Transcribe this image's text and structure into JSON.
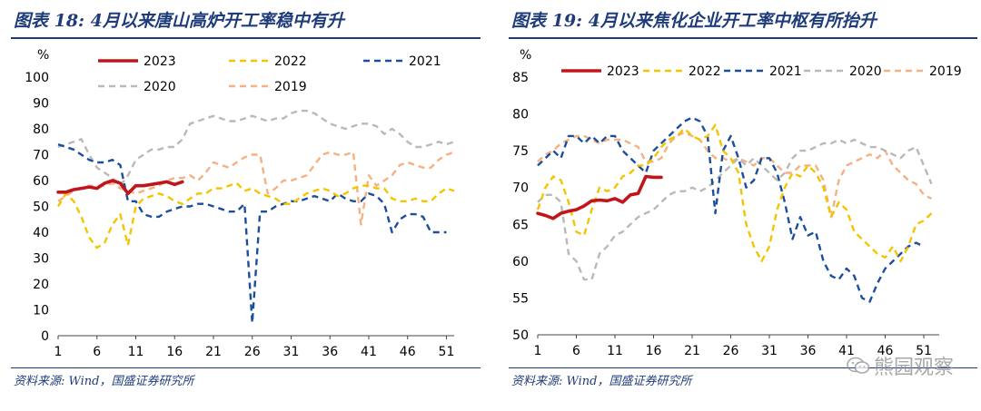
{
  "panels": [
    {
      "title": "图表 18:  4月以来唐山高炉开工率稳中有升",
      "source": "资料来源:  Wind，国盛证券研究所",
      "unit_label": "%"
    },
    {
      "title": "图表 19:  4月以来焦化企业开工率中枢有所抬升",
      "source": "资料来源:  Wind，国盛证券研究所",
      "unit_label": "%"
    }
  ],
  "watermark": {
    "text": "熊园观察"
  },
  "colors": {
    "y2023": "#c0161b",
    "y2022": "#f5c400",
    "y2021": "#1b4f9c",
    "y2020": "#b9b9b9",
    "y2019": "#f4b183",
    "title": "#1f3c7a"
  },
  "chart_data": [
    {
      "type": "line",
      "title": "4月以来唐山高炉开工率稳中有升",
      "ylabel": "%",
      "ylim": [
        0,
        100
      ],
      "yticks": [
        0,
        10,
        20,
        30,
        40,
        50,
        60,
        70,
        80,
        90,
        100
      ],
      "xlim": [
        1,
        52
      ],
      "xticks": [
        1,
        6,
        11,
        16,
        21,
        26,
        31,
        36,
        41,
        46,
        51
      ],
      "legend": [
        "2023",
        "2022",
        "2021",
        "2020",
        "2019"
      ],
      "series": [
        {
          "name": "2023",
          "x": [
            1,
            2,
            3,
            4,
            5,
            6,
            7,
            8,
            9,
            10,
            11,
            12,
            13,
            14,
            15,
            16,
            17
          ],
          "values": [
            55.5,
            55.5,
            56.5,
            57,
            57.5,
            57,
            59,
            60,
            59,
            55,
            58,
            58,
            58.5,
            59,
            59.5,
            58.5,
            59.5
          ]
        },
        {
          "name": "2022",
          "x": [
            1,
            2,
            3,
            4,
            5,
            6,
            7,
            8,
            9,
            10,
            11,
            12,
            13,
            14,
            15,
            16,
            17,
            18,
            19,
            20,
            21,
            22,
            23,
            24,
            25,
            26,
            27,
            28,
            29,
            30,
            31,
            32,
            33,
            34,
            35,
            36,
            37,
            38,
            39,
            40,
            41,
            42,
            43,
            44,
            45,
            46,
            47,
            48,
            49,
            50,
            51,
            52
          ],
          "values": [
            50,
            55,
            52,
            46,
            38,
            34,
            36,
            43,
            47,
            35,
            50,
            53,
            54,
            55,
            54,
            52,
            51,
            53,
            55,
            55,
            57,
            57,
            58,
            59,
            56,
            57,
            55,
            54,
            53,
            51,
            51,
            53,
            55,
            56,
            57,
            56,
            54,
            55,
            57,
            58,
            58,
            57,
            57,
            53,
            52,
            52,
            53,
            52,
            52,
            55,
            57,
            56
          ]
        },
        {
          "name": "2021",
          "x": [
            1,
            2,
            3,
            4,
            5,
            6,
            7,
            8,
            9,
            10,
            11,
            12,
            13,
            14,
            15,
            16,
            17,
            18,
            19,
            20,
            21,
            22,
            23,
            24,
            25,
            26,
            27,
            28,
            29,
            30,
            31,
            32,
            33,
            34,
            35,
            36,
            37,
            38,
            39,
            40,
            41,
            42,
            43,
            44,
            45,
            46,
            47,
            48,
            49,
            50,
            51
          ],
          "values": [
            74,
            73,
            72,
            70,
            68,
            67,
            67,
            68,
            66,
            52,
            52,
            47,
            46,
            46,
            48,
            49,
            50,
            50,
            51,
            51,
            50,
            49,
            48,
            48,
            51,
            5,
            48,
            48,
            50,
            51,
            52,
            52,
            53,
            54,
            53,
            52,
            55,
            53,
            52,
            52,
            55,
            54,
            51,
            40,
            45,
            47,
            47,
            46,
            40,
            40,
            40
          ]
        },
        {
          "name": "2020",
          "x": [
            1,
            2,
            3,
            4,
            5,
            6,
            7,
            8,
            9,
            10,
            11,
            12,
            13,
            14,
            15,
            16,
            17,
            18,
            19,
            20,
            21,
            22,
            23,
            24,
            25,
            26,
            27,
            28,
            29,
            30,
            31,
            32,
            33,
            34,
            35,
            36,
            37,
            38,
            39,
            40,
            41,
            42,
            43,
            44,
            45,
            46,
            47,
            48,
            49,
            50,
            51,
            52
          ],
          "values": [
            73,
            74,
            75,
            76,
            70,
            65,
            63,
            61,
            58,
            62,
            68,
            70,
            72,
            72,
            73,
            73,
            76,
            82,
            83,
            84,
            85,
            84,
            83,
            83,
            84,
            85,
            84,
            83,
            84,
            84,
            86,
            87,
            87,
            86,
            84,
            82,
            81,
            80,
            81,
            82,
            82,
            81,
            78,
            80,
            78,
            75,
            73,
            73,
            74,
            75,
            74,
            75
          ]
        },
        {
          "name": "2019",
          "x": [
            1,
            2,
            3,
            4,
            5,
            6,
            7,
            8,
            9,
            10,
            11,
            12,
            13,
            14,
            15,
            16,
            17,
            18,
            19,
            20,
            21,
            22,
            23,
            24,
            25,
            26,
            27,
            28,
            29,
            30,
            31,
            32,
            33,
            34,
            35,
            36,
            37,
            38,
            39,
            40,
            41,
            42,
            43,
            44,
            45,
            46,
            47,
            48,
            49,
            50,
            51,
            52
          ],
          "values": [
            52,
            54,
            56,
            57,
            58,
            58,
            58,
            59,
            57,
            56,
            55,
            56,
            57,
            58,
            60,
            61,
            61,
            62,
            60,
            63,
            67,
            66,
            65,
            67,
            69,
            70,
            70,
            55,
            57,
            60,
            60,
            61,
            62,
            66,
            70,
            71,
            70,
            70,
            71,
            43,
            62,
            58,
            60,
            62,
            66,
            67,
            66,
            65,
            65,
            68,
            70,
            71
          ]
        }
      ]
    },
    {
      "type": "line",
      "title": "4月以来焦化企业开工率中枢有所抬升",
      "ylabel": "%",
      "ylim": [
        50,
        85
      ],
      "yticks": [
        50,
        55,
        60,
        65,
        70,
        75,
        80,
        85
      ],
      "xlim": [
        1,
        53
      ],
      "xticks": [
        1,
        6,
        11,
        16,
        21,
        26,
        31,
        36,
        41,
        46,
        51
      ],
      "legend": [
        "2023",
        "2022",
        "2021",
        "2020",
        "2019"
      ],
      "series": [
        {
          "name": "2023",
          "x": [
            1,
            2,
            3,
            4,
            5,
            6,
            7,
            8,
            9,
            10,
            11,
            12,
            13,
            14,
            15,
            16,
            17
          ],
          "values": [
            66.5,
            66.2,
            65.8,
            66.5,
            66.8,
            67,
            67.5,
            68.2,
            68.3,
            68.2,
            68.5,
            68,
            69,
            69.2,
            71.5,
            71.4,
            71.4
          ]
        },
        {
          "name": "2022",
          "x": [
            1,
            2,
            3,
            4,
            5,
            6,
            7,
            8,
            9,
            10,
            11,
            12,
            13,
            14,
            15,
            16,
            17,
            18,
            19,
            20,
            21,
            22,
            23,
            24,
            25,
            26,
            27,
            28,
            29,
            30,
            31,
            32,
            33,
            34,
            35,
            36,
            37,
            38,
            39,
            40,
            41,
            42,
            43,
            44,
            45,
            46,
            47,
            48,
            49,
            50,
            51,
            52
          ],
          "values": [
            67,
            70,
            71.5,
            71,
            68,
            64,
            63.5,
            67,
            70,
            69.5,
            70,
            71.5,
            72,
            73,
            73,
            74,
            75.5,
            76.5,
            77,
            78,
            77,
            76.5,
            77,
            78.5,
            75,
            74,
            72,
            65,
            62,
            60,
            62,
            67,
            70,
            72,
            71.5,
            73,
            72,
            70,
            66,
            68,
            67,
            64,
            63,
            62,
            61,
            60.5,
            62,
            60,
            62,
            65,
            65.5,
            66.5
          ]
        },
        {
          "name": "2021",
          "x": [
            1,
            2,
            3,
            4,
            5,
            6,
            7,
            8,
            9,
            10,
            11,
            12,
            13,
            14,
            15,
            16,
            17,
            18,
            19,
            20,
            21,
            22,
            23,
            24,
            25,
            26,
            27,
            28,
            29,
            30,
            31,
            32,
            33,
            34,
            35,
            36,
            37,
            38,
            39,
            40,
            41,
            42,
            43,
            44,
            45,
            46,
            47,
            48,
            49,
            50,
            51
          ],
          "values": [
            73,
            74,
            75,
            74,
            77,
            77,
            76,
            77,
            76,
            77,
            77,
            75,
            74,
            73,
            72,
            75,
            76,
            77,
            78,
            79,
            79.5,
            79,
            77,
            66.5,
            75,
            77,
            74,
            70,
            71,
            74,
            74,
            72,
            68,
            63,
            66,
            63.5,
            64,
            60,
            58,
            57.5,
            59,
            58,
            55,
            54.5,
            57,
            59,
            60,
            61,
            62,
            62.5,
            62
          ]
        },
        {
          "name": "2020",
          "x": [
            1,
            2,
            3,
            4,
            5,
            6,
            7,
            8,
            9,
            10,
            11,
            12,
            13,
            14,
            15,
            16,
            17,
            18,
            19,
            20,
            21,
            22,
            23,
            24,
            25,
            26,
            27,
            28,
            29,
            30,
            31,
            32,
            33,
            34,
            35,
            36,
            37,
            38,
            39,
            40,
            41,
            42,
            43,
            44,
            45,
            46,
            47,
            48,
            49,
            50,
            51,
            52
          ],
          "values": [
            68,
            69,
            69,
            68,
            61,
            60,
            57.5,
            57.5,
            61,
            62,
            63.5,
            64,
            65,
            66,
            66.5,
            67,
            68,
            69,
            69.5,
            69.5,
            70,
            69.5,
            70,
            71,
            72,
            73,
            74,
            73,
            74,
            73,
            72,
            71,
            72,
            74,
            75,
            75,
            75.5,
            76,
            76,
            76.5,
            76,
            76.5,
            76,
            75.5,
            75.5,
            75,
            74.5,
            74,
            75,
            75.5,
            73,
            70.5
          ]
        },
        {
          "name": "2019",
          "x": [
            1,
            2,
            3,
            4,
            5,
            6,
            7,
            8,
            9,
            10,
            11,
            12,
            13,
            14,
            15,
            16,
            17,
            18,
            19,
            20,
            21,
            22,
            23,
            24,
            25,
            26,
            27,
            28,
            29,
            30,
            31,
            32,
            33,
            34,
            35,
            36,
            37,
            38,
            39,
            40,
            41,
            42,
            43,
            44,
            45,
            46,
            47,
            48,
            49,
            50,
            51,
            52
          ],
          "values": [
            73.5,
            74.5,
            75,
            76,
            76.5,
            77,
            77,
            76.5,
            76,
            76.5,
            76.5,
            76.5,
            76,
            75.5,
            73.5,
            73.5,
            74,
            76,
            77,
            77.5,
            77,
            76.5,
            75,
            74,
            74,
            73.5,
            74,
            73.5,
            73,
            74,
            74,
            73,
            72,
            72,
            73,
            73,
            73,
            71,
            66,
            71,
            73,
            73.5,
            74,
            74.5,
            74,
            75,
            73,
            72,
            71,
            70.5,
            69,
            68.5
          ]
        }
      ]
    }
  ]
}
